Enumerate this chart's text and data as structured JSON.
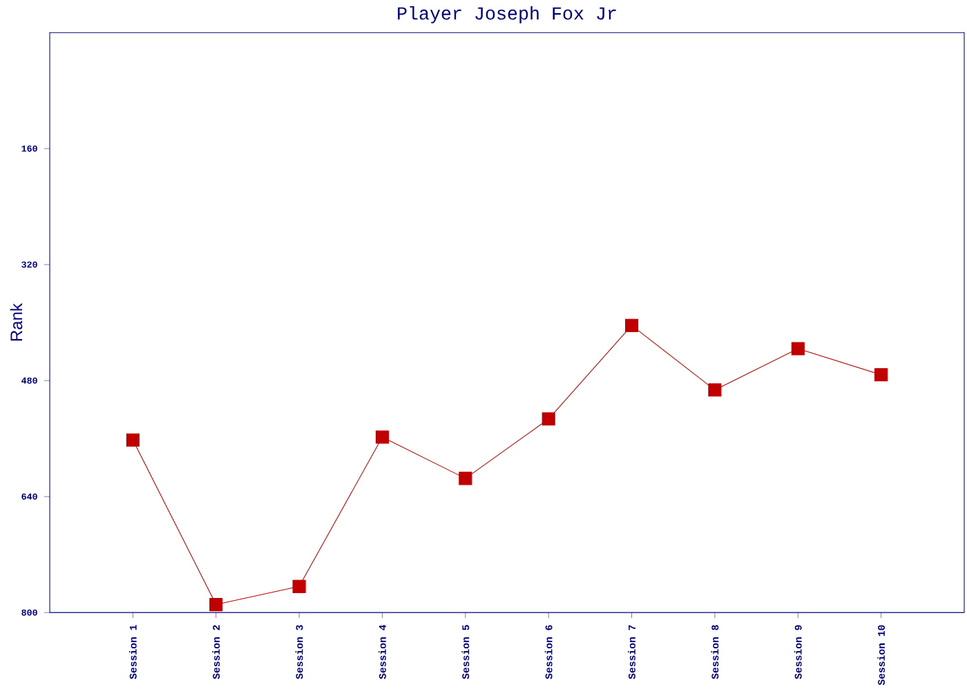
{
  "chart_data": {
    "type": "line",
    "title": "Player Joseph Fox Jr",
    "ylabel": "Rank",
    "categories": [
      "Session 1",
      "Session 2",
      "Session 3",
      "Session 4",
      "Session 5",
      "Session 6",
      "Session 7",
      "Session 8",
      "Session 9",
      "Session 10"
    ],
    "series": [
      {
        "color": "#c00000",
        "values": [
          562,
          789,
          764,
          558,
          615,
          533,
          404,
          493,
          436,
          472
        ]
      }
    ],
    "ylim": [
      800,
      0
    ],
    "yticks": [
      160,
      320,
      480,
      640,
      800
    ],
    "marker": "square",
    "grid": false
  }
}
